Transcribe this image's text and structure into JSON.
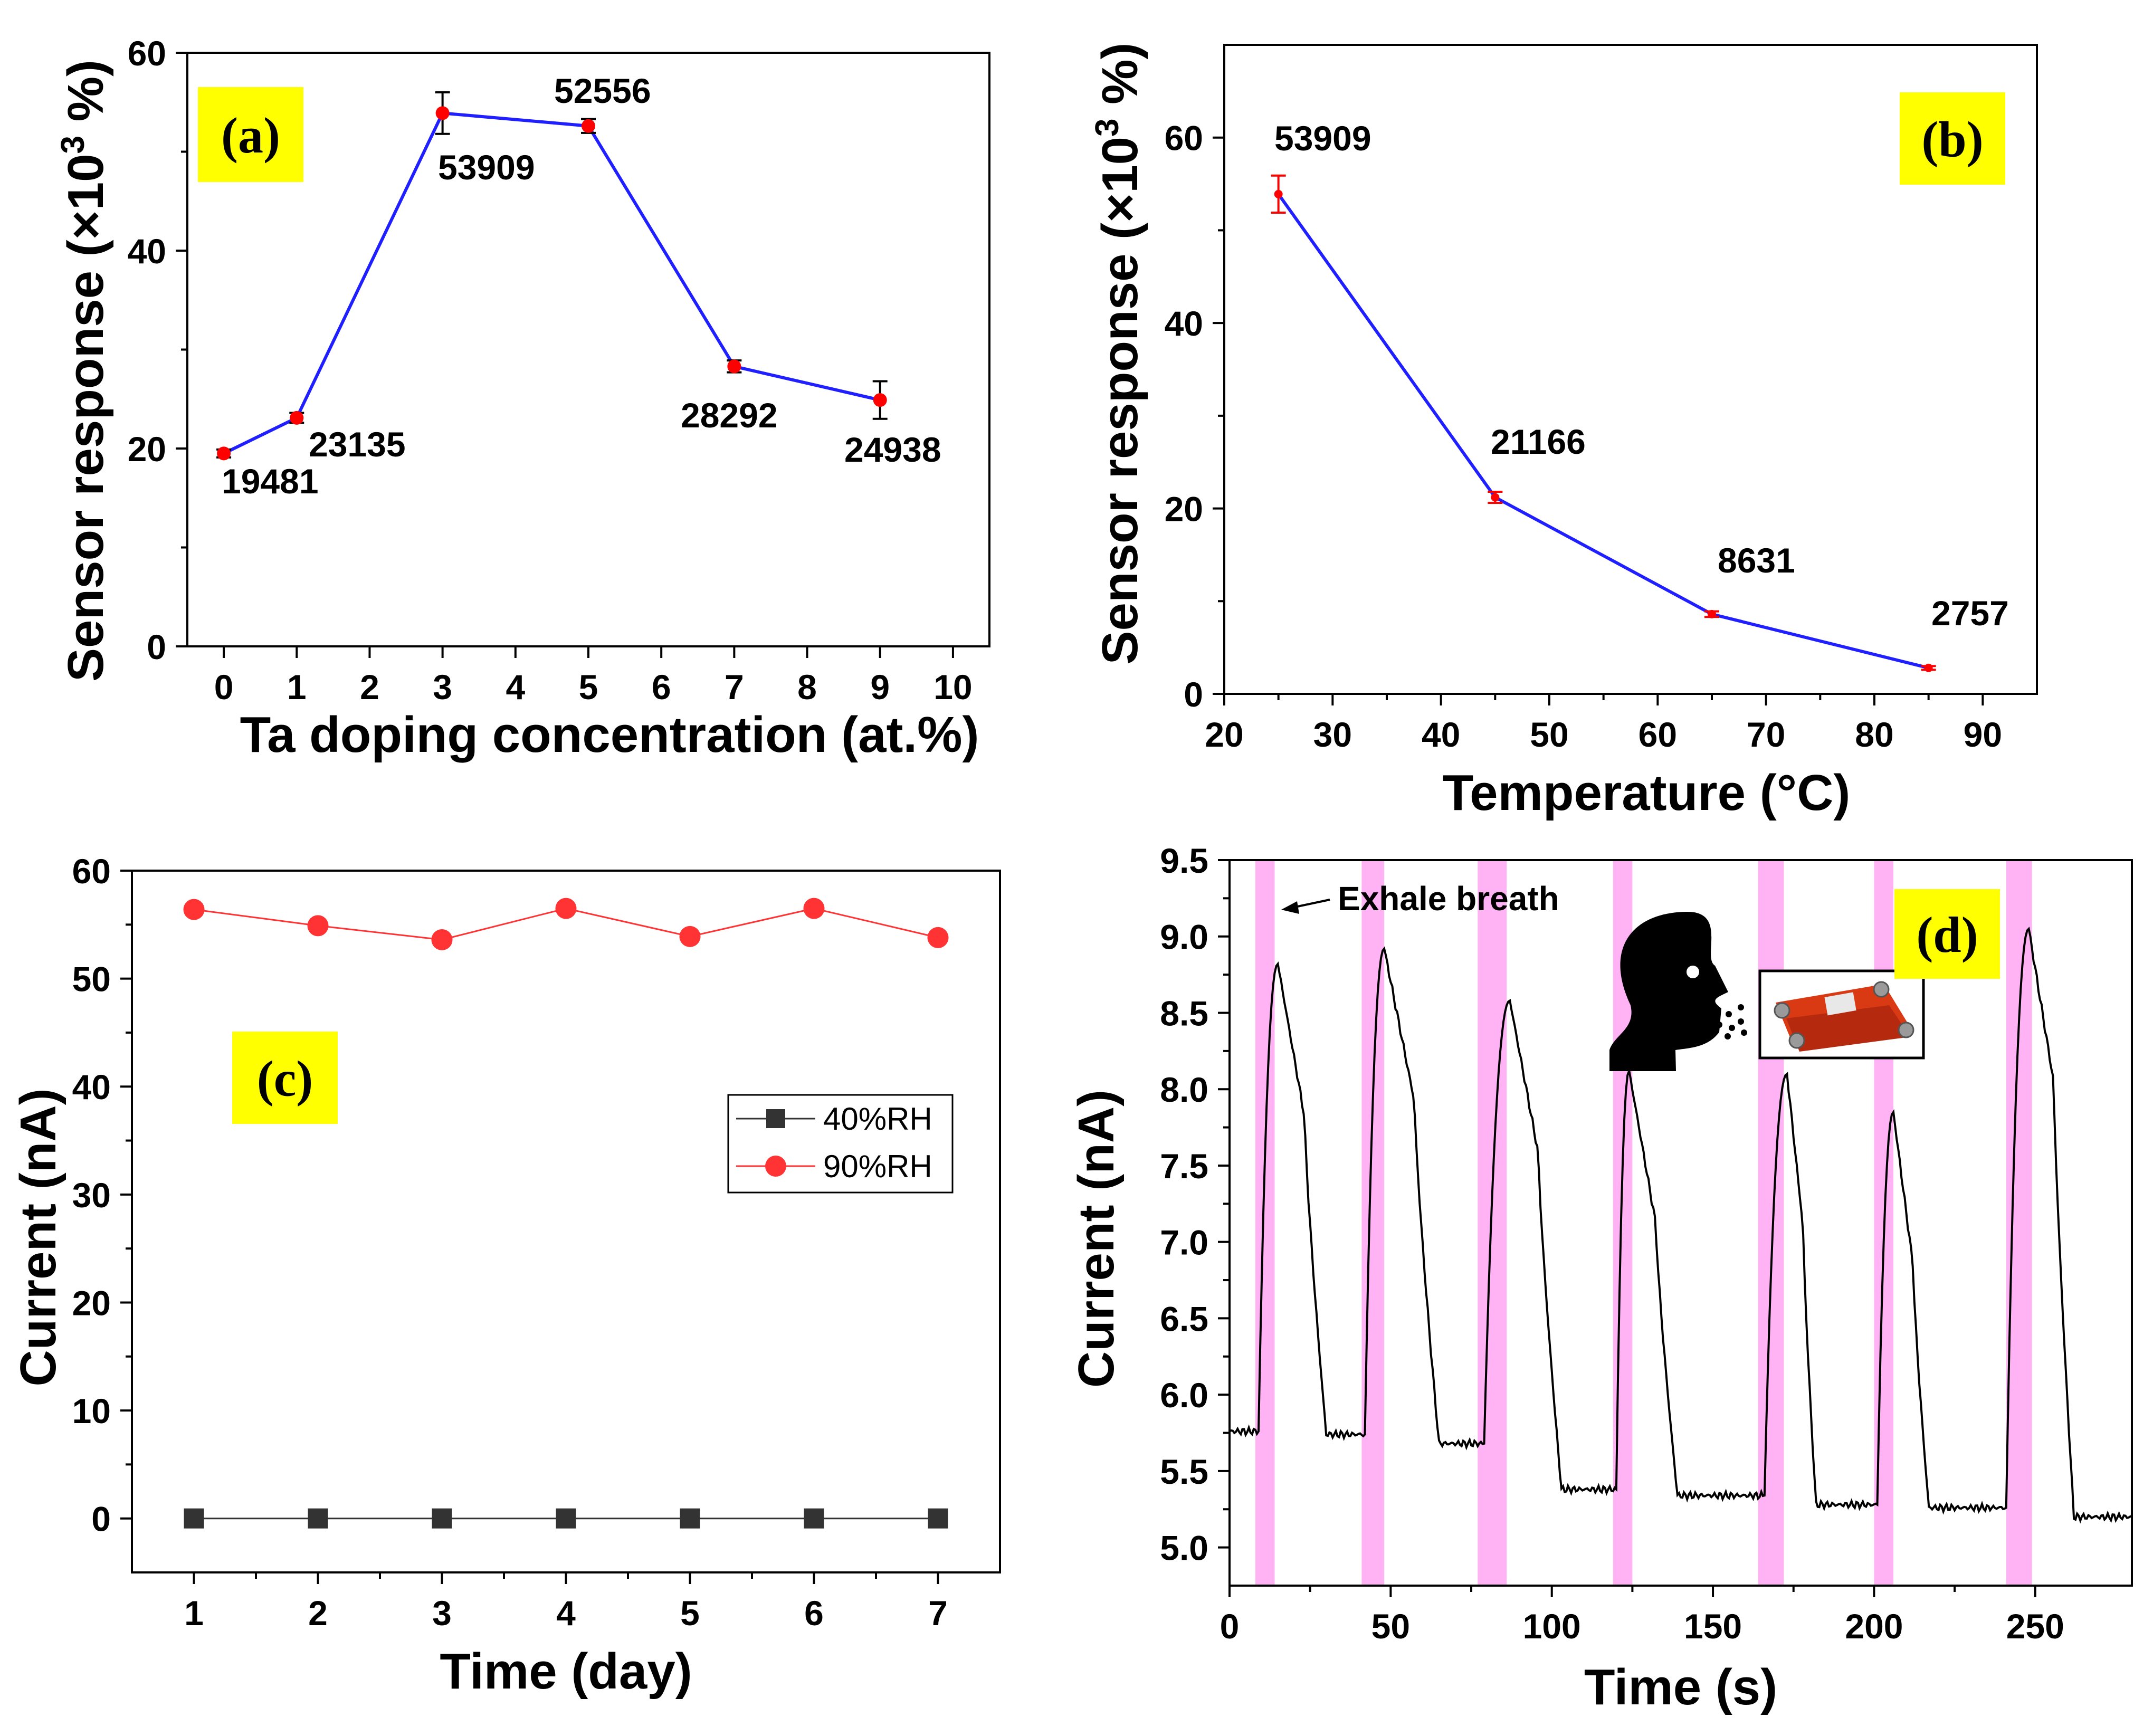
{
  "chart_data": [
    {
      "panel": "(a)",
      "type": "line",
      "xlabel": "Ta doping concentration (at.%)",
      "ylabel": "Sensor response (×10³ %)",
      "ylabel_parts": {
        "main": "Sensor response (×10",
        "sup": "3",
        "end": " %)"
      },
      "xlim": [
        -0.5,
        10.5
      ],
      "ylim": [
        0,
        60
      ],
      "xticks": [
        0,
        1,
        2,
        3,
        4,
        5,
        6,
        7,
        8,
        9,
        10
      ],
      "yticks": [
        0,
        20,
        40,
        60
      ],
      "line_color": "#1f1fff",
      "marker_color": "#ff0000",
      "errorbar_color": "#000000",
      "x": [
        0,
        1,
        3,
        5,
        7,
        9
      ],
      "y": [
        19.5,
        23.1,
        53.9,
        52.6,
        28.3,
        24.9
      ],
      "err": [
        0.4,
        0.5,
        2.1,
        0.7,
        0.6,
        1.9
      ],
      "labels": [
        "19481",
        "23135",
        "53909",
        "52556",
        "28292",
        "24938"
      ]
    },
    {
      "panel": "(b)",
      "type": "line",
      "xlabel": "Temperature (°C)",
      "ylabel": "Sensor response (×10³ %)",
      "ylabel_parts": {
        "main": "Sensor response (×10",
        "sup": "3",
        "end": " %)"
      },
      "xlim": [
        20,
        95
      ],
      "ylim": [
        0,
        70
      ],
      "xticks": [
        20,
        30,
        40,
        50,
        60,
        70,
        80,
        90
      ],
      "yticks": [
        0,
        20,
        40,
        60
      ],
      "line_color": "#1f1fff",
      "marker_color": "#ff0000",
      "errorbar_color": "#ff0000",
      "x": [
        25,
        45,
        65,
        85
      ],
      "y": [
        53.9,
        21.2,
        8.6,
        2.8
      ],
      "err": [
        2.0,
        0.6,
        0.3,
        0.2
      ],
      "labels": [
        "53909",
        "21166",
        "8631",
        "2757"
      ]
    },
    {
      "panel": "(c)",
      "type": "line",
      "xlabel": "Time (day)",
      "ylabel": "Current (nA)",
      "xlim": [
        0.5,
        7.5
      ],
      "ylim": [
        -5,
        60
      ],
      "xticks": [
        1,
        2,
        3,
        4,
        5,
        6,
        7
      ],
      "yticks": [
        0,
        10,
        20,
        30,
        40,
        50,
        60
      ],
      "series": [
        {
          "name": "40%RH",
          "color": "#333333",
          "marker": "square",
          "x": [
            1,
            2,
            3,
            4,
            5,
            6,
            7
          ],
          "y": [
            0,
            0,
            0,
            0,
            0,
            0,
            0
          ]
        },
        {
          "name": "90%RH",
          "color": "#ff3333",
          "marker": "circle",
          "x": [
            1,
            2,
            3,
            4,
            5,
            6,
            7
          ],
          "y": [
            56.4,
            54.9,
            53.6,
            56.5,
            53.9,
            56.5,
            53.8
          ]
        }
      ],
      "legend_position": "right-middle"
    },
    {
      "panel": "(d)",
      "type": "line",
      "xlabel": "Time (s)",
      "ylabel": "Current (nA)",
      "xlim": [
        0,
        280
      ],
      "ylim": [
        4.75,
        9.5
      ],
      "xticks": [
        0,
        50,
        100,
        150,
        200,
        250
      ],
      "yticks": [
        5.0,
        5.5,
        6.0,
        6.5,
        7.0,
        7.5,
        8.0,
        8.5,
        9.0,
        9.5
      ],
      "ytick_labels": [
        "5.0",
        "5.5",
        "6.0",
        "6.5",
        "7.0",
        "7.5",
        "8.0",
        "8.5",
        "9.0",
        "9.5"
      ],
      "line_color": "#000000",
      "highlight_color": "#ffb3f5",
      "exhale_intervals": [
        [
          8,
          14
        ],
        [
          41,
          48
        ],
        [
          77,
          86
        ],
        [
          119,
          125
        ],
        [
          164,
          172
        ],
        [
          200,
          206
        ],
        [
          241,
          249
        ]
      ],
      "pulses": [
        {
          "rise": 9,
          "peak_t": 15,
          "peak": 8.82,
          "decay_end": 30,
          "base": 5.74
        },
        {
          "rise": 42,
          "peak_t": 48,
          "peak": 8.92,
          "decay_end": 65,
          "base": 5.68
        },
        {
          "rise": 79,
          "peak_t": 87,
          "peak": 8.58,
          "decay_end": 103,
          "base": 5.38
        },
        {
          "rise": 120,
          "peak_t": 124,
          "peak": 8.12,
          "decay_end": 139,
          "base": 5.34
        },
        {
          "rise": 166,
          "peak_t": 173,
          "peak": 8.1,
          "decay_end": 182,
          "base": 5.28
        },
        {
          "rise": 201,
          "peak_t": 206,
          "peak": 7.85,
          "decay_end": 217,
          "base": 5.26
        },
        {
          "rise": 241,
          "peak_t": 248,
          "peak": 9.05,
          "decay_end": 262,
          "base": 5.2
        }
      ],
      "start_level": 5.76,
      "annotation": "Exhale breath"
    }
  ],
  "panel_labels": {
    "a": "(a)",
    "b": "(b)",
    "c": "(c)",
    "d": "(d)"
  },
  "label_bg_color": "#ffff00"
}
